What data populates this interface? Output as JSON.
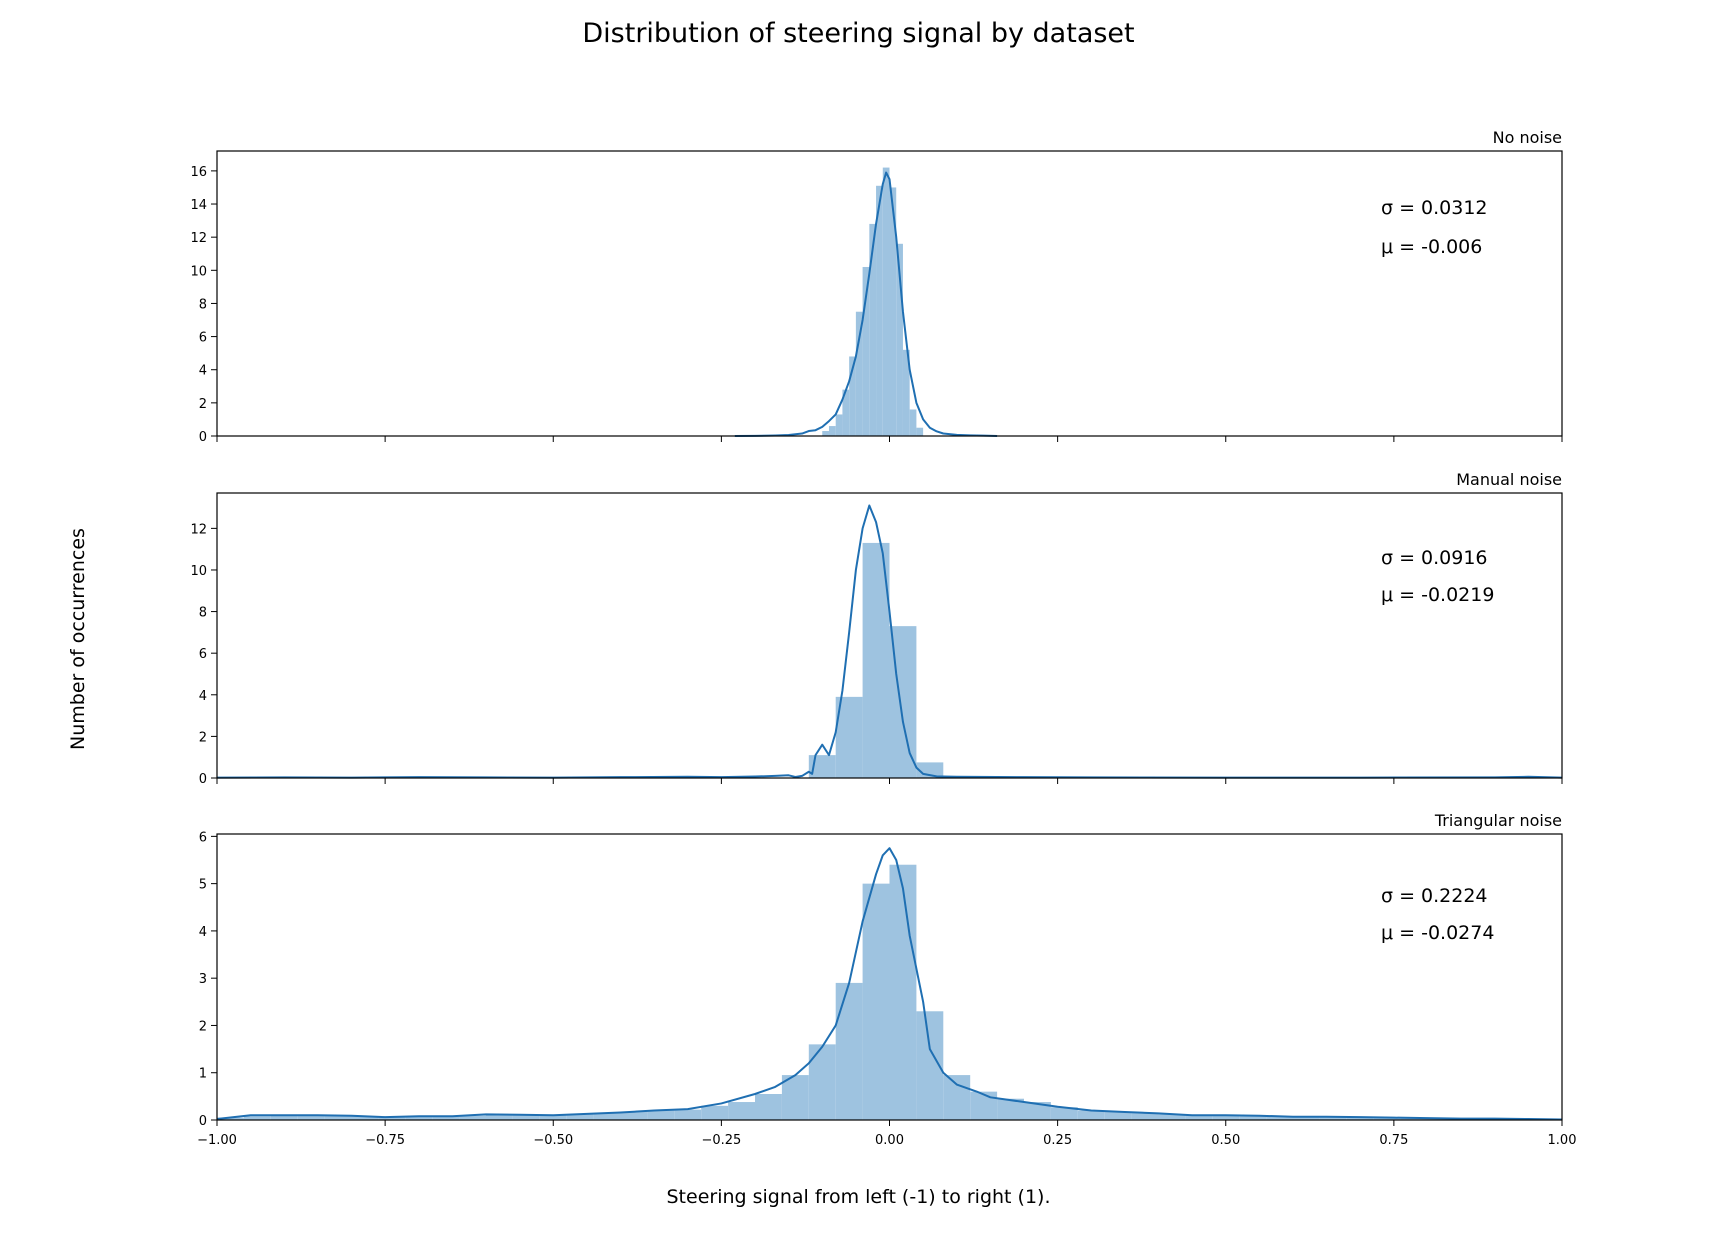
{
  "figure": {
    "title": "Distribution of steering signal by dataset",
    "xlabel": "Steering signal from left (-1) to right (1).",
    "ylabel": "Number of occurrences"
  },
  "colors": {
    "bar": "#9ec3e0",
    "line": "#1f6fb2",
    "axes": "#000000"
  },
  "chart_data": [
    {
      "type": "bar",
      "title": "No noise",
      "title_loc": "right",
      "annotations": [
        "σ = 0.0312",
        "μ = -0.006"
      ],
      "xlim": [
        -1,
        1
      ],
      "ylim": [
        0,
        17.2
      ],
      "yticks": [
        0,
        2,
        4,
        6,
        8,
        10,
        12,
        14,
        16
      ],
      "x_tick_labels_shown": false,
      "bar_width": 0.01,
      "bars": [
        [
          -0.1,
          0.3
        ],
        [
          -0.09,
          0.6
        ],
        [
          -0.08,
          1.3
        ],
        [
          -0.07,
          2.8
        ],
        [
          -0.06,
          4.8
        ],
        [
          -0.05,
          7.5
        ],
        [
          -0.04,
          10.2
        ],
        [
          -0.03,
          12.8
        ],
        [
          -0.02,
          15.1
        ],
        [
          -0.01,
          16.2
        ],
        [
          0.0,
          15.0
        ],
        [
          0.01,
          11.6
        ],
        [
          0.02,
          5.2
        ],
        [
          0.03,
          1.6
        ],
        [
          0.04,
          0.5
        ]
      ],
      "kde": [
        [
          -0.23,
          0
        ],
        [
          -0.2,
          0.01
        ],
        [
          -0.17,
          0.03
        ],
        [
          -0.15,
          0.06
        ],
        [
          -0.13,
          0.15
        ],
        [
          -0.12,
          0.3
        ],
        [
          -0.11,
          0.35
        ],
        [
          -0.1,
          0.55
        ],
        [
          -0.09,
          0.9
        ],
        [
          -0.08,
          1.3
        ],
        [
          -0.07,
          2.2
        ],
        [
          -0.06,
          3.3
        ],
        [
          -0.05,
          4.8
        ],
        [
          -0.04,
          7.0
        ],
        [
          -0.03,
          9.8
        ],
        [
          -0.02,
          12.8
        ],
        [
          -0.01,
          15.2
        ],
        [
          -0.005,
          15.9
        ],
        [
          0,
          15.5
        ],
        [
          0.01,
          12.0
        ],
        [
          0.02,
          7.5
        ],
        [
          0.03,
          4.0
        ],
        [
          0.04,
          2.0
        ],
        [
          0.05,
          1.0
        ],
        [
          0.06,
          0.5
        ],
        [
          0.07,
          0.28
        ],
        [
          0.08,
          0.15
        ],
        [
          0.1,
          0.07
        ],
        [
          0.12,
          0.04
        ],
        [
          0.14,
          0.02
        ],
        [
          0.16,
          0
        ]
      ]
    },
    {
      "type": "bar",
      "title": "Manual noise",
      "title_loc": "right",
      "annotations": [
        "σ = 0.0916",
        "μ = -0.0219"
      ],
      "xlim": [
        -1,
        1
      ],
      "ylim": [
        0,
        13.7
      ],
      "yticks": [
        0,
        2,
        4,
        6,
        8,
        10,
        12
      ],
      "x_tick_labels_shown": false,
      "bar_width": 0.04,
      "bars": [
        [
          -0.12,
          1.1
        ],
        [
          -0.08,
          3.9
        ],
        [
          -0.04,
          11.3
        ],
        [
          0.0,
          7.3
        ],
        [
          0.04,
          0.75
        ]
      ],
      "kde": [
        [
          -1,
          0.02
        ],
        [
          -0.9,
          0.03
        ],
        [
          -0.8,
          0.02
        ],
        [
          -0.7,
          0.04
        ],
        [
          -0.6,
          0.03
        ],
        [
          -0.5,
          0.02
        ],
        [
          -0.4,
          0.04
        ],
        [
          -0.3,
          0.06
        ],
        [
          -0.25,
          0.04
        ],
        [
          -0.2,
          0.07
        ],
        [
          -0.17,
          0.1
        ],
        [
          -0.15,
          0.13
        ],
        [
          -0.14,
          0.05
        ],
        [
          -0.13,
          0.1
        ],
        [
          -0.12,
          0.3
        ],
        [
          -0.115,
          0.2
        ],
        [
          -0.11,
          1.1
        ],
        [
          -0.1,
          1.6
        ],
        [
          -0.09,
          1.1
        ],
        [
          -0.08,
          2.2
        ],
        [
          -0.07,
          4.2
        ],
        [
          -0.06,
          7.0
        ],
        [
          -0.05,
          10.0
        ],
        [
          -0.04,
          12.0
        ],
        [
          -0.03,
          13.1
        ],
        [
          -0.02,
          12.3
        ],
        [
          -0.01,
          10.8
        ],
        [
          0.0,
          8.0
        ],
        [
          0.01,
          5.0
        ],
        [
          0.02,
          2.7
        ],
        [
          0.03,
          1.2
        ],
        [
          0.04,
          0.5
        ],
        [
          0.05,
          0.2
        ],
        [
          0.07,
          0.08
        ],
        [
          0.1,
          0.06
        ],
        [
          0.2,
          0.04
        ],
        [
          0.3,
          0.03
        ],
        [
          0.5,
          0.02
        ],
        [
          0.7,
          0.02
        ],
        [
          0.9,
          0.03
        ],
        [
          0.95,
          0.06
        ],
        [
          1.0,
          0.02
        ]
      ]
    },
    {
      "type": "bar",
      "title": "Triangular noise",
      "title_loc": "right",
      "annotations": [
        "σ = 0.2224",
        "μ = -0.0274"
      ],
      "xlim": [
        -1,
        1
      ],
      "ylim": [
        0,
        6.05
      ],
      "yticks": [
        0,
        1,
        2,
        3,
        4,
        5,
        6
      ],
      "xticks": [
        -1,
        -0.75,
        -0.5,
        -0.25,
        0,
        0.25,
        0.5,
        0.75,
        1
      ],
      "xtick_labels": [
        "−1.00",
        "−0.75",
        "−0.50",
        "−0.25",
        "0.00",
        "0.25",
        "0.50",
        "0.75",
        "1.00"
      ],
      "bar_width": 0.04,
      "bars": [
        [
          -1.0,
          0.05
        ],
        [
          -0.96,
          0.08
        ],
        [
          -0.92,
          0.09
        ],
        [
          -0.88,
          0.09
        ],
        [
          -0.84,
          0.1
        ],
        [
          -0.8,
          0.08
        ],
        [
          -0.76,
          0.07
        ],
        [
          -0.72,
          0.08
        ],
        [
          -0.68,
          0.07
        ],
        [
          -0.64,
          0.09
        ],
        [
          -0.6,
          0.11
        ],
        [
          -0.56,
          0.1
        ],
        [
          -0.52,
          0.11
        ],
        [
          -0.48,
          0.12
        ],
        [
          -0.44,
          0.15
        ],
        [
          -0.4,
          0.18
        ],
        [
          -0.36,
          0.2
        ],
        [
          -0.32,
          0.22
        ],
        [
          -0.28,
          0.3
        ],
        [
          -0.24,
          0.38
        ],
        [
          -0.2,
          0.55
        ],
        [
          -0.16,
          0.95
        ],
        [
          -0.12,
          1.6
        ],
        [
          -0.08,
          2.9
        ],
        [
          -0.04,
          5.0
        ],
        [
          0.0,
          5.4
        ],
        [
          0.04,
          2.3
        ],
        [
          0.08,
          0.95
        ],
        [
          0.12,
          0.6
        ],
        [
          0.16,
          0.45
        ],
        [
          0.2,
          0.38
        ],
        [
          0.24,
          0.27
        ],
        [
          0.28,
          0.2
        ],
        [
          0.32,
          0.18
        ],
        [
          0.36,
          0.15
        ],
        [
          0.4,
          0.12
        ],
        [
          0.44,
          0.1
        ],
        [
          0.48,
          0.1
        ],
        [
          0.52,
          0.08
        ],
        [
          0.56,
          0.08
        ],
        [
          0.6,
          0.07
        ],
        [
          0.64,
          0.07
        ],
        [
          0.68,
          0.06
        ],
        [
          0.72,
          0.06
        ],
        [
          0.76,
          0.05
        ],
        [
          0.8,
          0.05
        ],
        [
          0.84,
          0.04
        ],
        [
          0.88,
          0.03
        ],
        [
          0.92,
          0.03
        ],
        [
          0.96,
          0.02
        ]
      ],
      "kde": [
        [
          -1.0,
          0.02
        ],
        [
          -0.95,
          0.1
        ],
        [
          -0.9,
          0.1
        ],
        [
          -0.85,
          0.1
        ],
        [
          -0.8,
          0.09
        ],
        [
          -0.75,
          0.06
        ],
        [
          -0.7,
          0.08
        ],
        [
          -0.65,
          0.08
        ],
        [
          -0.6,
          0.12
        ],
        [
          -0.55,
          0.11
        ],
        [
          -0.5,
          0.1
        ],
        [
          -0.45,
          0.13
        ],
        [
          -0.4,
          0.16
        ],
        [
          -0.35,
          0.2
        ],
        [
          -0.3,
          0.23
        ],
        [
          -0.25,
          0.35
        ],
        [
          -0.2,
          0.55
        ],
        [
          -0.17,
          0.7
        ],
        [
          -0.14,
          0.95
        ],
        [
          -0.12,
          1.2
        ],
        [
          -0.1,
          1.55
        ],
        [
          -0.08,
          2.0
        ],
        [
          -0.06,
          2.9
        ],
        [
          -0.04,
          4.2
        ],
        [
          -0.02,
          5.2
        ],
        [
          -0.01,
          5.6
        ],
        [
          0.0,
          5.75
        ],
        [
          0.01,
          5.5
        ],
        [
          0.02,
          4.9
        ],
        [
          0.03,
          3.9
        ],
        [
          0.05,
          2.5
        ],
        [
          0.06,
          1.5
        ],
        [
          0.08,
          1.0
        ],
        [
          0.1,
          0.75
        ],
        [
          0.13,
          0.6
        ],
        [
          0.15,
          0.48
        ],
        [
          0.2,
          0.38
        ],
        [
          0.25,
          0.28
        ],
        [
          0.3,
          0.2
        ],
        [
          0.35,
          0.17
        ],
        [
          0.4,
          0.14
        ],
        [
          0.45,
          0.1
        ],
        [
          0.5,
          0.1
        ],
        [
          0.55,
          0.09
        ],
        [
          0.6,
          0.07
        ],
        [
          0.65,
          0.07
        ],
        [
          0.7,
          0.06
        ],
        [
          0.75,
          0.05
        ],
        [
          0.8,
          0.04
        ],
        [
          0.85,
          0.03
        ],
        [
          0.9,
          0.03
        ],
        [
          0.95,
          0.02
        ],
        [
          1.0,
          0.01
        ]
      ]
    }
  ]
}
